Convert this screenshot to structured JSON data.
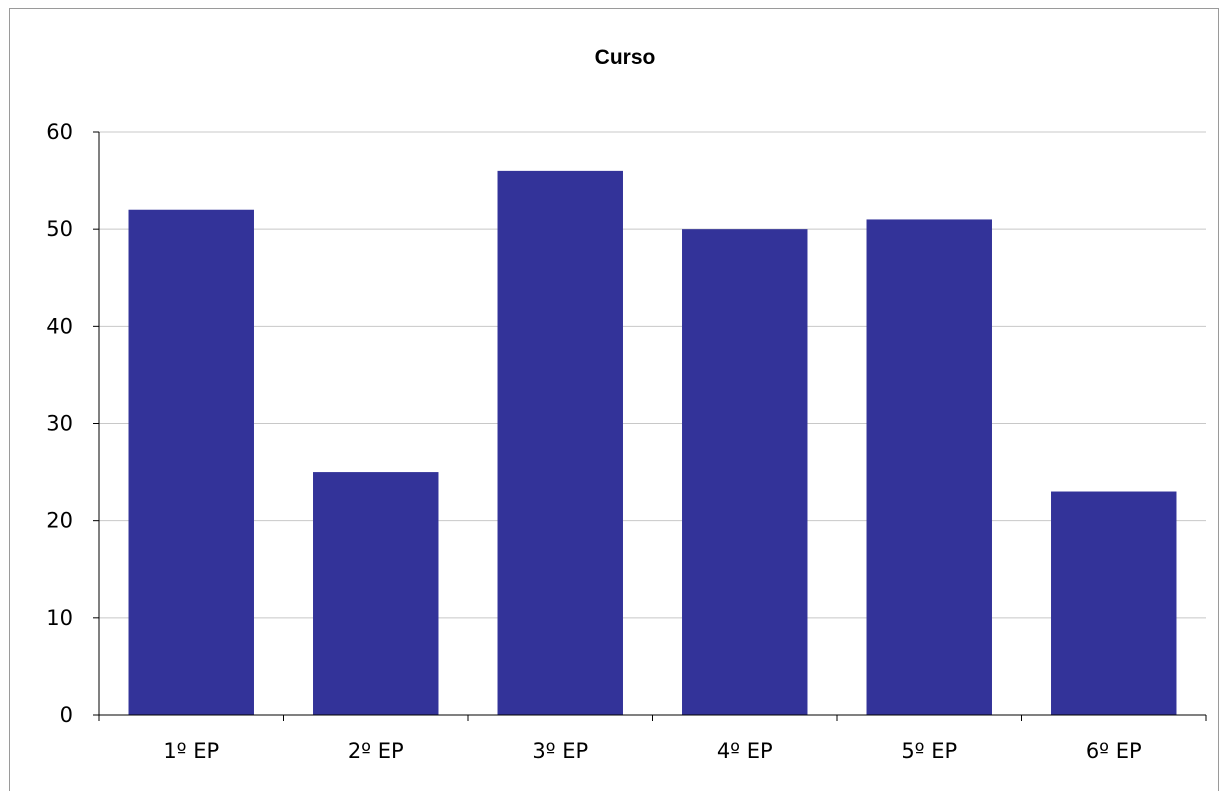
{
  "chart_data": {
    "type": "bar",
    "title": "Curso",
    "xlabel": "",
    "ylabel": "",
    "categories": [
      "1º EP",
      "2º EP",
      "3º EP",
      "4º EP",
      "5º EP",
      "6º EP"
    ],
    "values": [
      52,
      25,
      56,
      50,
      51,
      23
    ],
    "ylim": [
      0,
      60
    ],
    "yticks": [
      0,
      10,
      20,
      30,
      40,
      50,
      60
    ],
    "grid": true,
    "legend": "none",
    "colors": {
      "bar": "#333399",
      "grid": "#c8c8c8",
      "axis": "#000000",
      "frame": "#9a9a9a"
    }
  }
}
